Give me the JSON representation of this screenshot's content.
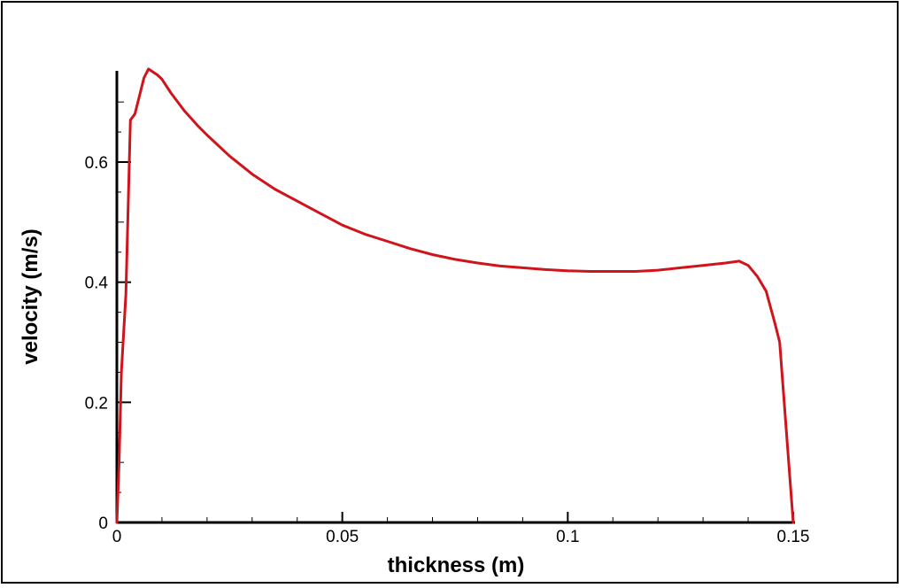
{
  "chart_data": {
    "type": "line",
    "title": "",
    "xlabel": "thickness (m)",
    "ylabel": "velocity (m/s)",
    "xlim": [
      0,
      0.15
    ],
    "ylim": [
      0,
      0.75
    ],
    "xticks": [
      "0",
      "0.05",
      "0.1",
      "0.15"
    ],
    "yticks": [
      "0",
      "0.2",
      "0.4",
      "0.6"
    ],
    "grid": false,
    "colors": {
      "line": "#d0141c",
      "axis": "#000000"
    },
    "series": [
      {
        "x": [
          0,
          0.0005,
          0.001,
          0.002,
          0.003,
          0.004,
          0.006,
          0.007,
          0.009,
          0.01,
          0.012,
          0.015,
          0.018,
          0.02,
          0.025,
          0.03,
          0.035,
          0.04,
          0.045,
          0.05,
          0.055,
          0.06,
          0.065,
          0.07,
          0.075,
          0.08,
          0.085,
          0.09,
          0.095,
          0.1,
          0.105,
          0.11,
          0.115,
          0.12,
          0.125,
          0.13,
          0.135,
          0.138,
          0.14,
          0.142,
          0.144,
          0.146,
          0.147,
          0.148,
          0.149,
          0.15
        ],
        "y": [
          0,
          0.1,
          0.25,
          0.38,
          0.67,
          0.68,
          0.74,
          0.755,
          0.745,
          0.738,
          0.715,
          0.685,
          0.66,
          0.645,
          0.61,
          0.58,
          0.555,
          0.535,
          0.515,
          0.495,
          0.48,
          0.468,
          0.456,
          0.446,
          0.438,
          0.432,
          0.427,
          0.424,
          0.421,
          0.419,
          0.418,
          0.418,
          0.418,
          0.42,
          0.424,
          0.428,
          0.432,
          0.435,
          0.428,
          0.41,
          0.385,
          0.33,
          0.3,
          0.2,
          0.1,
          0
        ]
      }
    ]
  }
}
